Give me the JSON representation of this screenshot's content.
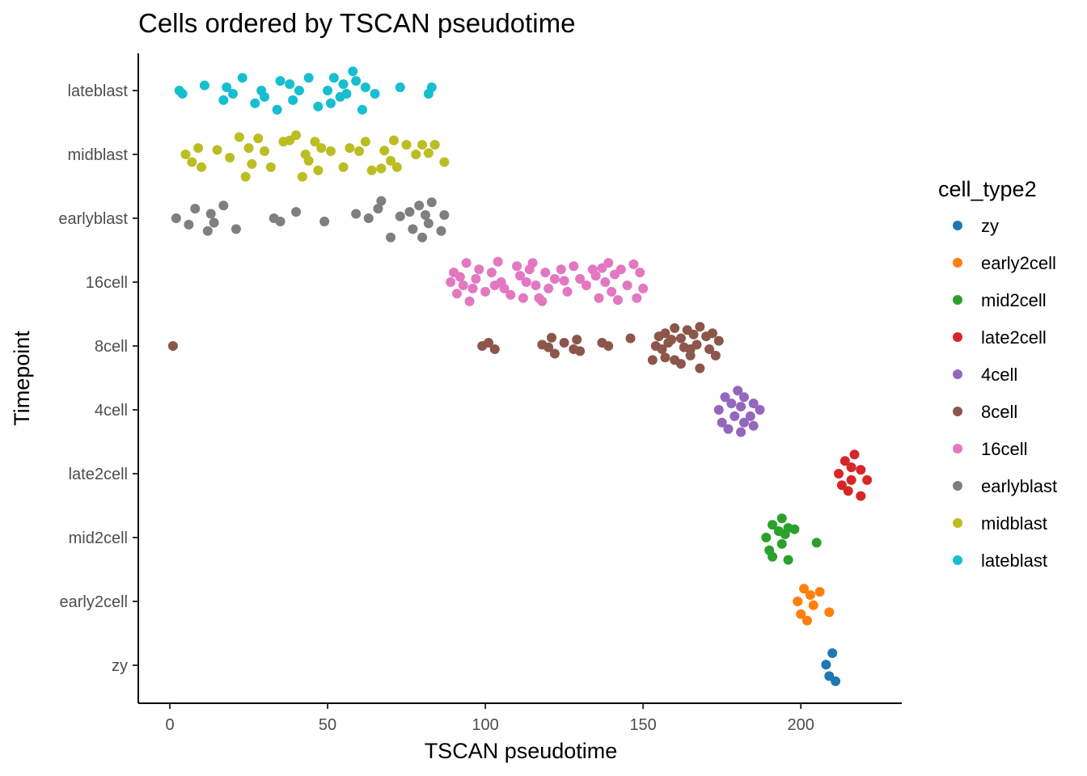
{
  "chart_data": {
    "type": "scatter",
    "title": "Cells ordered by TSCAN pseudotime",
    "xlabel": "TSCAN pseudotime",
    "ylabel": "Timepoint",
    "xlim": [
      -10,
      232
    ],
    "x_ticks": [
      0,
      50,
      100,
      150,
      200
    ],
    "y_categories": [
      "zy",
      "early2cell",
      "mid2cell",
      "late2cell",
      "4cell",
      "8cell",
      "16cell",
      "earlyblast",
      "midblast",
      "lateblast"
    ],
    "grid": false,
    "legend": {
      "title": "cell_type2",
      "position": "right",
      "entries": [
        {
          "label": "zy",
          "color": "#1f77b4"
        },
        {
          "label": "early2cell",
          "color": "#ff7f0e"
        },
        {
          "label": "mid2cell",
          "color": "#2ca02c"
        },
        {
          "label": "late2cell",
          "color": "#d62728"
        },
        {
          "label": "4cell",
          "color": "#9467bd"
        },
        {
          "label": "8cell",
          "color": "#8c564b"
        },
        {
          "label": "16cell",
          "color": "#e377c2"
        },
        {
          "label": "earlyblast",
          "color": "#7f7f7f"
        },
        {
          "label": "midblast",
          "color": "#bcbd22"
        },
        {
          "label": "lateblast",
          "color": "#17becf"
        }
      ]
    },
    "series": [
      {
        "name": "zy",
        "category": "zy",
        "points": [
          [
            210,
            0.19
          ],
          [
            208,
            0.01
          ],
          [
            209,
            -0.17
          ],
          [
            211,
            -0.25
          ]
        ]
      },
      {
        "name": "early2cell",
        "category": "early2cell",
        "points": [
          [
            201,
            0.2
          ],
          [
            203,
            0.1
          ],
          [
            206,
            0.15
          ],
          [
            199,
            0
          ],
          [
            204,
            -0.06
          ],
          [
            209,
            -0.17
          ],
          [
            200,
            -0.2
          ],
          [
            202,
            -0.3
          ]
        ]
      },
      {
        "name": "mid2cell",
        "category": "mid2cell",
        "points": [
          [
            194,
            0.3
          ],
          [
            191,
            0.2
          ],
          [
            196,
            0.15
          ],
          [
            198,
            0.13
          ],
          [
            193,
            0.1
          ],
          [
            189,
            0
          ],
          [
            195,
            0.05
          ],
          [
            205,
            -0.08
          ],
          [
            194,
            -0.1
          ],
          [
            190,
            -0.2
          ],
          [
            191,
            -0.3
          ],
          [
            196,
            -0.35
          ]
        ]
      },
      {
        "name": "late2cell",
        "category": "late2cell",
        "points": [
          [
            217,
            0.3
          ],
          [
            214,
            0.2
          ],
          [
            216,
            0.1
          ],
          [
            219,
            0.06
          ],
          [
            212,
            0
          ],
          [
            216,
            -0.1
          ],
          [
            221,
            -0.1
          ],
          [
            213,
            -0.18
          ],
          [
            215,
            -0.27
          ],
          [
            219,
            -0.35
          ]
        ]
      },
      {
        "name": "4cell",
        "category": "4cell",
        "points": [
          [
            180,
            0.3
          ],
          [
            176,
            0.2
          ],
          [
            182,
            0.2
          ],
          [
            178,
            0.1
          ],
          [
            185,
            0.1
          ],
          [
            174,
            0
          ],
          [
            181,
            0.05
          ],
          [
            187,
            0
          ],
          [
            179,
            -0.1
          ],
          [
            184,
            -0.1
          ],
          [
            175,
            -0.2
          ],
          [
            182,
            -0.2
          ],
          [
            177,
            -0.3
          ],
          [
            185,
            -0.25
          ],
          [
            181,
            -0.35
          ]
        ]
      },
      {
        "name": "8cell",
        "category": "8cell",
        "points": [
          [
            1,
            0
          ],
          [
            99,
            0
          ],
          [
            101,
            0.05
          ],
          [
            103,
            -0.05
          ],
          [
            118,
            0.02
          ],
          [
            120,
            -0.02
          ],
          [
            121,
            0.13
          ],
          [
            122,
            -0.12
          ],
          [
            125,
            0.05
          ],
          [
            128,
            -0.05
          ],
          [
            129,
            0.1
          ],
          [
            130,
            -0.08
          ],
          [
            137,
            0.05
          ],
          [
            139,
            0
          ],
          [
            146,
            0.12
          ],
          [
            155,
            0.15
          ],
          [
            157,
            0.2
          ],
          [
            159,
            0.1
          ],
          [
            160,
            0.28
          ],
          [
            162,
            0.12
          ],
          [
            164,
            0.25
          ],
          [
            166,
            0.18
          ],
          [
            168,
            0.3
          ],
          [
            170,
            0.15
          ],
          [
            172,
            0.2
          ],
          [
            174,
            0.08
          ],
          [
            154,
            0
          ],
          [
            156,
            -0.05
          ],
          [
            158,
            0.05
          ],
          [
            163,
            -0.02
          ],
          [
            165,
            -0.05
          ],
          [
            167,
            0.02
          ],
          [
            171,
            -0.05
          ],
          [
            173,
            -0.15
          ],
          [
            153,
            -0.22
          ],
          [
            157,
            -0.18
          ],
          [
            160,
            -0.22
          ],
          [
            162,
            -0.28
          ],
          [
            165,
            -0.15
          ],
          [
            168,
            -0.35
          ]
        ]
      },
      {
        "name": "16cell",
        "category": "16cell",
        "points": [
          [
            94,
            0.3
          ],
          [
            90,
            0.15
          ],
          [
            92,
            0.08
          ],
          [
            89,
            0
          ],
          [
            93,
            -0.05
          ],
          [
            91,
            -0.18
          ],
          [
            95,
            -0.3
          ],
          [
            98,
            0.2
          ],
          [
            97,
            0.05
          ],
          [
            100,
            -0.15
          ],
          [
            102,
            0.15
          ],
          [
            104,
            0.32
          ],
          [
            105,
            0
          ],
          [
            103,
            -0.05
          ],
          [
            106,
            -0.1
          ],
          [
            108,
            -0.2
          ],
          [
            110,
            0.25
          ],
          [
            111,
            0.1
          ],
          [
            113,
            0
          ],
          [
            114,
            0.2
          ],
          [
            116,
            -0.05
          ],
          [
            117,
            -0.25
          ],
          [
            119,
            0.15
          ],
          [
            120,
            -0.1
          ],
          [
            122,
            0.05
          ],
          [
            124,
            0.2
          ],
          [
            126,
            -0.15
          ],
          [
            128,
            0.25
          ],
          [
            130,
            0.05
          ],
          [
            132,
            -0.05
          ],
          [
            134,
            0.2
          ],
          [
            135,
            0.1
          ],
          [
            137,
            0.22
          ],
          [
            138,
            0
          ],
          [
            140,
            -0.15
          ],
          [
            141,
            0.12
          ],
          [
            143,
            0.2
          ],
          [
            145,
            -0.05
          ],
          [
            147,
            0.28
          ],
          [
            148,
            -0.25
          ],
          [
            150,
            -0.1
          ],
          [
            112,
            -0.25
          ],
          [
            115,
            0.3
          ],
          [
            136,
            -0.25
          ],
          [
            142,
            -0.28
          ],
          [
            149,
            0.15
          ],
          [
            96,
            -0.1
          ],
          [
            118,
            -0.3
          ],
          [
            125,
            0.02
          ],
          [
            139,
            0.3
          ]
        ]
      },
      {
        "name": "earlyblast",
        "category": "earlyblast",
        "points": [
          [
            2,
            0
          ],
          [
            6,
            -0.1
          ],
          [
            8,
            0.15
          ],
          [
            12,
            -0.2
          ],
          [
            13,
            0.07
          ],
          [
            14,
            -0.07
          ],
          [
            17,
            0.2
          ],
          [
            21,
            -0.17
          ],
          [
            33,
            0
          ],
          [
            35,
            -0.05
          ],
          [
            40,
            0.1
          ],
          [
            49,
            -0.05
          ],
          [
            59,
            0.07
          ],
          [
            63,
            0
          ],
          [
            67,
            0.27
          ],
          [
            70,
            -0.3
          ],
          [
            73,
            0.03
          ],
          [
            76,
            0.1
          ],
          [
            77,
            -0.17
          ],
          [
            79,
            0.2
          ],
          [
            80,
            -0.3
          ],
          [
            81,
            0.05
          ],
          [
            83,
            0.25
          ],
          [
            86,
            -0.2
          ],
          [
            87,
            0.05
          ],
          [
            82,
            -0.08
          ],
          [
            66,
            0.15
          ]
        ]
      },
      {
        "name": "midblast",
        "category": "midblast",
        "points": [
          [
            5,
            0
          ],
          [
            7,
            -0.12
          ],
          [
            9,
            0.1
          ],
          [
            10,
            -0.2
          ],
          [
            15,
            0.07
          ],
          [
            19,
            -0.05
          ],
          [
            22,
            0.27
          ],
          [
            24,
            -0.35
          ],
          [
            25,
            0.1
          ],
          [
            26,
            -0.15
          ],
          [
            28,
            0.25
          ],
          [
            30,
            0.05
          ],
          [
            32,
            -0.2
          ],
          [
            36,
            0.2
          ],
          [
            38,
            0.22
          ],
          [
            40,
            0.3
          ],
          [
            42,
            -0.35
          ],
          [
            43,
            0
          ],
          [
            44,
            -0.1
          ],
          [
            46,
            0.2
          ],
          [
            47,
            -0.25
          ],
          [
            48,
            0.1
          ],
          [
            51,
            0.05
          ],
          [
            55,
            -0.2
          ],
          [
            57,
            0.1
          ],
          [
            60,
            0.05
          ],
          [
            62,
            0.2
          ],
          [
            64,
            -0.25
          ],
          [
            67,
            -0.22
          ],
          [
            68,
            0.06
          ],
          [
            70,
            -0.1
          ],
          [
            71,
            0.22
          ],
          [
            72,
            -0.2
          ],
          [
            75,
            0.15
          ],
          [
            78,
            0
          ],
          [
            80,
            0.15
          ],
          [
            82,
            0.02
          ],
          [
            84,
            0.15
          ],
          [
            87,
            -0.12
          ]
        ]
      },
      {
        "name": "lateblast",
        "category": "lateblast",
        "points": [
          [
            3,
            0
          ],
          [
            4,
            -0.05
          ],
          [
            11,
            0.08
          ],
          [
            17,
            -0.15
          ],
          [
            18,
            0.05
          ],
          [
            20,
            -0.05
          ],
          [
            23,
            0.2
          ],
          [
            27,
            -0.2
          ],
          [
            29,
            0
          ],
          [
            30,
            -0.1
          ],
          [
            34,
            -0.3
          ],
          [
            35,
            0.15
          ],
          [
            38,
            0.1
          ],
          [
            39,
            -0.15
          ],
          [
            41,
            0
          ],
          [
            44,
            0.2
          ],
          [
            47,
            -0.25
          ],
          [
            50,
            0
          ],
          [
            51,
            -0.2
          ],
          [
            52,
            0.2
          ],
          [
            54,
            -0.1
          ],
          [
            55,
            0.1
          ],
          [
            56,
            -0.05
          ],
          [
            58,
            0.3
          ],
          [
            59,
            0.15
          ],
          [
            61,
            -0.3
          ],
          [
            62,
            0.05
          ],
          [
            65,
            -0.05
          ],
          [
            73,
            0.05
          ],
          [
            82,
            -0.05
          ],
          [
            83,
            0.05
          ]
        ]
      }
    ]
  }
}
